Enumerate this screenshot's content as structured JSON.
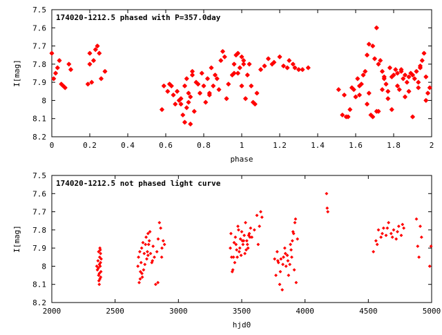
{
  "chart_data": [
    {
      "type": "scatter",
      "title": "174020-1212.5 phased with P=357.0day",
      "xlabel": "phase",
      "ylabel": "I[mag]",
      "xlim": [
        0,
        2
      ],
      "ylim": [
        8.2,
        7.5
      ],
      "y_inverted": true,
      "x_ticks": [
        "0",
        "0.2",
        "0.4",
        "0.6",
        "0.8",
        "1",
        "1.2",
        "1.4",
        "1.6",
        "1.8",
        "2"
      ],
      "x_tick_values": [
        0,
        0.2,
        0.4,
        0.6,
        0.8,
        1.0,
        1.2,
        1.4,
        1.6,
        1.8,
        2.0
      ],
      "y_ticks": [
        "7.5",
        "7.6",
        "7.7",
        "7.8",
        "7.9",
        "8",
        "8.1",
        "8.2"
      ],
      "y_tick_values": [
        7.5,
        7.6,
        7.7,
        7.8,
        7.9,
        8.0,
        8.1,
        8.2
      ],
      "marker": "star",
      "color": "#ff0000",
      "series": [
        {
          "x": [
            0.0,
            0.01,
            0.02,
            0.03,
            0.04,
            0.05,
            0.06,
            0.07,
            0.09,
            0.1,
            0.19,
            0.2,
            0.2,
            0.21,
            0.22,
            0.23,
            0.24,
            0.25,
            0.26,
            0.28,
            0.58,
            0.59,
            0.61,
            0.62,
            0.63,
            0.64,
            0.66,
            0.67,
            0.68,
            0.69,
            0.7,
            0.7,
            0.71,
            0.71,
            0.72,
            0.72,
            0.73,
            0.73,
            0.74,
            0.75,
            0.76,
            0.78,
            0.79,
            0.8,
            0.81,
            0.82,
            0.83,
            0.84,
            0.85,
            0.86,
            0.87,
            0.88,
            0.89,
            0.9,
            0.91,
            0.93,
            0.95,
            0.96,
            0.97,
            0.98,
            0.98,
            0.99,
            1.0,
            1.0,
            1.01,
            1.02,
            1.03,
            1.04,
            1.05,
            1.06,
            1.07,
            1.1,
            1.12,
            1.14,
            1.17,
            1.2,
            1.22,
            1.25,
            1.27,
            1.3,
            1.32,
            1.35,
            1.51,
            1.53,
            1.55,
            1.56,
            1.57,
            1.58,
            1.6,
            1.61,
            1.62,
            1.63,
            1.64,
            1.65,
            1.66,
            1.67,
            1.68,
            1.69,
            1.7,
            1.71,
            1.72,
            1.73,
            1.74,
            1.75,
            1.76,
            1.77,
            1.78,
            1.79,
            1.8,
            1.81,
            1.82,
            1.83,
            1.84,
            1.85,
            1.86,
            1.87,
            1.88,
            1.89,
            1.9,
            1.91,
            1.92,
            1.93,
            1.94,
            1.95,
            1.96,
            1.97,
            1.98,
            1.99,
            1.54,
            1.59,
            1.66,
            1.69,
            1.72,
            1.75,
            1.77,
            1.82,
            1.86,
            1.9,
            1.94,
            1.97,
            0.65,
            0.68,
            0.74,
            0.77,
            0.83,
            0.92,
            0.96,
            1.01,
            1.08,
            1.16,
            1.24,
            1.28,
            1.62,
            1.67,
            1.71,
            1.74,
            1.79,
            1.84,
            1.88,
            1.93
          ],
          "y": [
            7.74,
            7.88,
            7.85,
            7.82,
            7.78,
            7.91,
            7.92,
            7.93,
            7.8,
            7.83,
            7.91,
            7.8,
            7.74,
            7.9,
            7.78,
            7.72,
            7.7,
            7.74,
            7.88,
            7.84,
            8.05,
            7.92,
            7.95,
            7.91,
            7.92,
            7.97,
            7.95,
            8.0,
            8.02,
            8.08,
            8.12,
            7.92,
            8.04,
            7.88,
            8.01,
            7.96,
            8.13,
            7.98,
            7.84,
            8.06,
            7.9,
            7.96,
            7.85,
            7.92,
            8.01,
            7.88,
            7.96,
            7.82,
            7.92,
            7.86,
            7.88,
            7.94,
            7.78,
            7.73,
            7.76,
            7.91,
            7.86,
            7.8,
            7.75,
            7.74,
            7.85,
            7.82,
            7.76,
            7.92,
            7.78,
            7.99,
            7.86,
            7.8,
            7.92,
            8.01,
            8.02,
            7.83,
            7.81,
            7.77,
            7.79,
            7.76,
            7.81,
            7.78,
            7.8,
            7.83,
            7.83,
            7.82,
            7.94,
            8.08,
            8.09,
            8.09,
            8.05,
            7.93,
            7.98,
            7.88,
            7.97,
            7.91,
            7.86,
            7.84,
            7.75,
            7.69,
            8.08,
            7.7,
            7.77,
            7.6,
            7.8,
            7.78,
            7.84,
            7.88,
            7.91,
            7.95,
            7.82,
            8.05,
            7.86,
            7.83,
            7.85,
            7.94,
            7.84,
            7.88,
            7.98,
            7.9,
            7.87,
            7.85,
            7.86,
            7.88,
            7.84,
            7.9,
            7.82,
            7.78,
            7.74,
            7.87,
            7.96,
            7.93,
            7.97,
            7.94,
            8.02,
            8.09,
            8.06,
            7.87,
            7.99,
            7.92,
            7.86,
            8.09,
            7.81,
            8.0,
            8.02,
            7.99,
            7.86,
            7.91,
            7.97,
            7.99,
            7.85,
            7.8,
            7.96,
            7.8,
            7.82,
            7.82,
            7.92,
            7.96,
            8.06,
            7.94,
            7.87,
            7.83,
            7.95,
            7.93
          ]
        }
      ]
    },
    {
      "type": "scatter",
      "title": "174020-1212.5 not phased light curve",
      "xlabel": "hjd0",
      "ylabel": "I[mag]",
      "xlim": [
        2000,
        5000
      ],
      "ylim": [
        8.2,
        7.5
      ],
      "y_inverted": true,
      "x_ticks": [
        "2000",
        "2500",
        "3000",
        "3500",
        "4000",
        "4500",
        "5000"
      ],
      "x_tick_values": [
        2000,
        2500,
        3000,
        3500,
        4000,
        4500,
        5000
      ],
      "y_ticks": [
        "7.5",
        "7.6",
        "7.7",
        "7.8",
        "7.9",
        "8",
        "8.1",
        "8.2"
      ],
      "y_tick_values": [
        7.5,
        7.6,
        7.7,
        7.8,
        7.9,
        8.0,
        8.1,
        8.2
      ],
      "marker": "diamond",
      "color": "#ff0000",
      "series": [
        {
          "x": [
            2355,
            2360,
            2365,
            2370,
            2370,
            2375,
            2375,
            2378,
            2380,
            2380,
            2382,
            2385,
            2385,
            2388,
            2390,
            2372,
            2376,
            2383,
            2368,
            2386,
            2680,
            2685,
            2690,
            2695,
            2700,
            2705,
            2710,
            2715,
            2720,
            2725,
            2730,
            2740,
            2745,
            2750,
            2755,
            2760,
            2765,
            2770,
            2780,
            2790,
            2800,
            2810,
            2820,
            2830,
            2840,
            2850,
            2860,
            2870,
            2880,
            2890,
            2698,
            2712,
            2735,
            2760,
            2775,
            2795,
            2838,
            2868,
            3410,
            3420,
            3430,
            3440,
            3450,
            3460,
            3470,
            3480,
            3490,
            3500,
            3510,
            3520,
            3530,
            3540,
            3550,
            3560,
            3570,
            3580,
            3600,
            3620,
            3640,
            3660,
            3425,
            3445,
            3465,
            3485,
            3505,
            3525,
            3545,
            3565,
            3415,
            3435,
            3455,
            3475,
            3495,
            3515,
            3535,
            3555,
            3650,
            3630,
            3760,
            3770,
            3780,
            3790,
            3800,
            3810,
            3820,
            3830,
            3840,
            3850,
            3860,
            3870,
            3880,
            3890,
            3900,
            3910,
            3920,
            3930,
            3940,
            3785,
            3805,
            3825,
            3845,
            3865,
            3885,
            3905,
            3925,
            3915,
            3895,
            4170,
            4175,
            4180,
            4540,
            4560,
            4580,
            4600,
            4620,
            4640,
            4660,
            4680,
            4700,
            4720,
            4740,
            4760,
            4780,
            4570,
            4610,
            4650,
            4690,
            4730,
            4770,
            4880,
            4890,
            4900,
            4910,
            4920,
            4985,
            4995
          ],
          "y": [
            8.0,
            8.02,
            7.97,
            8.05,
            7.92,
            8.1,
            8.04,
            7.95,
            7.9,
            8.07,
            8.0,
            7.98,
            7.93,
            8.03,
            7.96,
            8.08,
            7.99,
            7.91,
            8.01,
            8.06,
            8.0,
            7.95,
            8.09,
            7.92,
            8.03,
            7.98,
            7.9,
            8.06,
            7.87,
            8.02,
            7.93,
            7.88,
            7.84,
            7.96,
            7.92,
            7.82,
            7.88,
            7.86,
            7.93,
            7.98,
            7.89,
            7.95,
            8.1,
            7.92,
            7.85,
            7.76,
            7.79,
            7.9,
            7.86,
            7.88,
            8.07,
            8.04,
            7.99,
            7.94,
            7.81,
            7.97,
            8.09,
            7.95,
            7.9,
            7.95,
            8.02,
            7.87,
            7.84,
            7.91,
            7.78,
            7.92,
            7.85,
            7.81,
            7.88,
            7.83,
            7.76,
            7.86,
            7.9,
            7.82,
            7.79,
            7.84,
            7.8,
            7.72,
            7.78,
            7.73,
            8.03,
            7.98,
            7.95,
            7.9,
            7.86,
            7.93,
            7.88,
            7.84,
            7.82,
            7.95,
            7.88,
            7.8,
            7.94,
            7.86,
            7.91,
            7.83,
            7.7,
            7.88,
            7.96,
            8.05,
            7.92,
            7.98,
            8.1,
            7.96,
            8.13,
            7.95,
            7.9,
            8.0,
            7.94,
            8.05,
            7.99,
            7.91,
            7.86,
            7.82,
            7.76,
            8.09,
            7.85,
            7.97,
            8.03,
            7.99,
            7.93,
            7.97,
            7.88,
            7.81,
            7.74,
            8.02,
            7.95,
            7.6,
            7.68,
            7.7,
            7.92,
            7.86,
            7.8,
            7.84,
            7.79,
            7.83,
            7.76,
            7.82,
            7.8,
            7.85,
            7.78,
            7.83,
            7.79,
            7.88,
            7.82,
            7.79,
            7.84,
            7.81,
            7.77,
            7.74,
            7.89,
            7.95,
            7.78,
            7.84,
            8.0,
            7.89
          ]
        }
      ]
    }
  ]
}
